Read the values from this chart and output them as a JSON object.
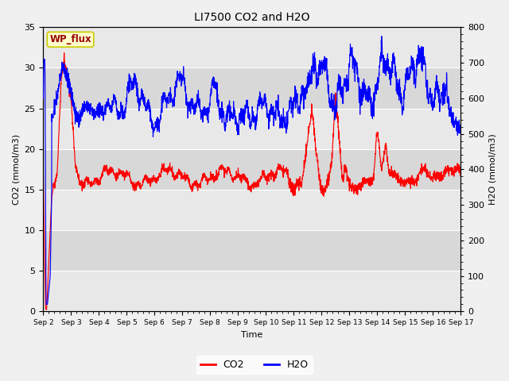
{
  "title": "LI7500 CO2 and H2O",
  "xlabel": "Time",
  "ylabel_left": "CO2 (mmol/m3)",
  "ylabel_right": "H2O (mmol/m3)",
  "xlim": [
    0,
    15
  ],
  "ylim_left": [
    0,
    35
  ],
  "ylim_right": [
    0,
    800
  ],
  "xtick_labels": [
    "Sep 2",
    "Sep 3",
    "Sep 4",
    "Sep 5",
    "Sep 6",
    "Sep 7",
    "Sep 8",
    "Sep 9",
    "Sep 10",
    "Sep 11",
    "Sep 12",
    "Sep 13",
    "Sep 14",
    "Sep 15",
    "Sep 16",
    "Sep 17"
  ],
  "yticks_left": [
    0,
    5,
    10,
    15,
    20,
    25,
    30,
    35
  ],
  "yticks_right": [
    0,
    100,
    200,
    300,
    400,
    500,
    600,
    700,
    800
  ],
  "co2_color": "#ff0000",
  "h2o_color": "#0000ff",
  "bg_color": "#f0f0f0",
  "band_light": "#e8e8e8",
  "band_dark": "#d8d8d8",
  "grid_color": "#ffffff",
  "legend_label_co2": "CO2",
  "legend_label_h2o": "H2O",
  "watermark_text": "WP_flux",
  "watermark_bg": "#ffffcc",
  "watermark_border": "#cccc00",
  "figsize": [
    6.4,
    4.8
  ],
  "dpi": 100
}
